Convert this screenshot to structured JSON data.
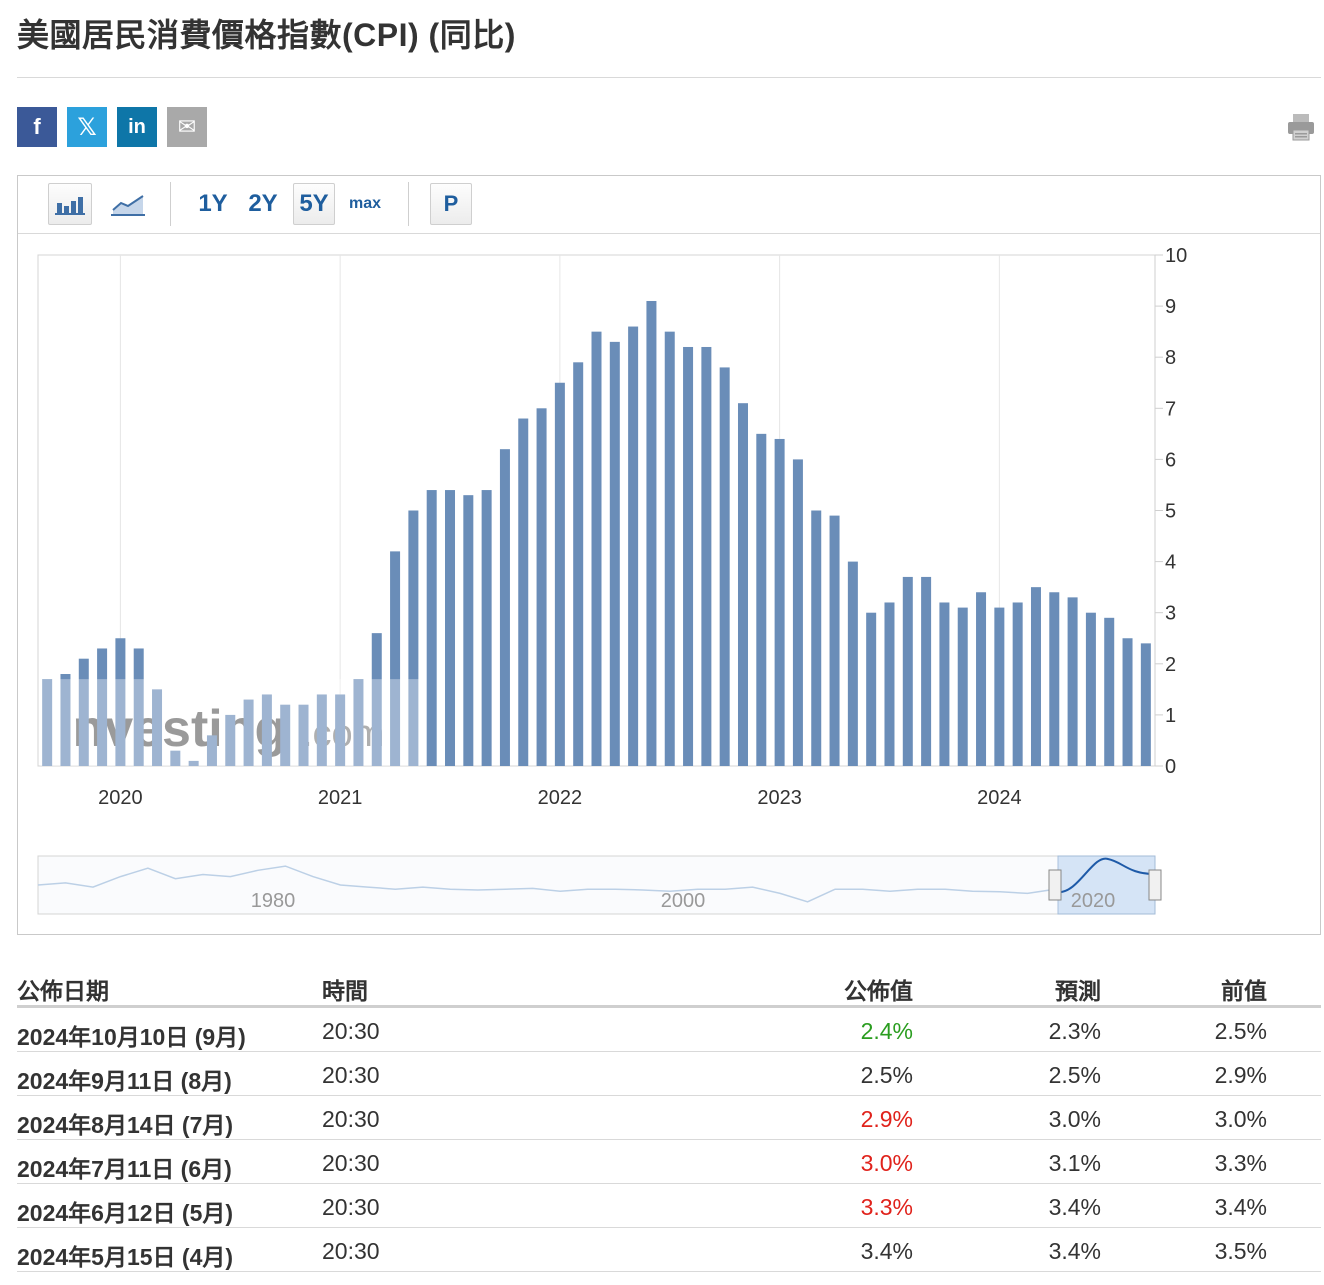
{
  "page": {
    "title": "美國居民消費價格指數(CPI) (同比)"
  },
  "share": {
    "facebook": "f",
    "twitter": "𝕏",
    "linkedin": "in",
    "email": "✉"
  },
  "toolbar": {
    "ranges": [
      "1Y",
      "2Y",
      "5Y",
      "max"
    ],
    "selected_range": "5Y",
    "p_label": "P"
  },
  "chart_data": {
    "type": "bar",
    "title": "",
    "xlabel": "",
    "ylabel": "",
    "ylim": [
      0,
      10
    ],
    "yticks": [
      0,
      1,
      2,
      3,
      4,
      5,
      6,
      7,
      8,
      9,
      10
    ],
    "year_ticks": [
      "2020",
      "2021",
      "2022",
      "2023",
      "2024"
    ],
    "categories": [
      "2019-09",
      "2019-10",
      "2019-11",
      "2019-12",
      "2020-01",
      "2020-02",
      "2020-03",
      "2020-04",
      "2020-05",
      "2020-06",
      "2020-07",
      "2020-08",
      "2020-09",
      "2020-10",
      "2020-11",
      "2020-12",
      "2021-01",
      "2021-02",
      "2021-03",
      "2021-04",
      "2021-05",
      "2021-06",
      "2021-07",
      "2021-08",
      "2021-09",
      "2021-10",
      "2021-11",
      "2021-12",
      "2022-01",
      "2022-02",
      "2022-03",
      "2022-04",
      "2022-05",
      "2022-06",
      "2022-07",
      "2022-08",
      "2022-09",
      "2022-10",
      "2022-11",
      "2022-12",
      "2023-01",
      "2023-02",
      "2023-03",
      "2023-04",
      "2023-05",
      "2023-06",
      "2023-07",
      "2023-08",
      "2023-09",
      "2023-10",
      "2023-11",
      "2023-12",
      "2024-01",
      "2024-02",
      "2024-03",
      "2024-04",
      "2024-05",
      "2024-06",
      "2024-07",
      "2024-08",
      "2024-09"
    ],
    "values": [
      1.7,
      1.8,
      2.1,
      2.3,
      2.5,
      2.3,
      1.5,
      0.3,
      0.1,
      0.6,
      1.0,
      1.3,
      1.4,
      1.2,
      1.2,
      1.4,
      1.4,
      1.7,
      2.6,
      4.2,
      5.0,
      5.4,
      5.4,
      5.3,
      5.4,
      6.2,
      6.8,
      7.0,
      7.5,
      7.9,
      8.5,
      8.3,
      8.6,
      9.1,
      8.5,
      8.2,
      8.2,
      7.8,
      7.1,
      6.5,
      6.4,
      6.0,
      5.0,
      4.9,
      4.0,
      3.0,
      3.2,
      3.7,
      3.7,
      3.2,
      3.1,
      3.4,
      3.1,
      3.2,
      3.5,
      3.4,
      3.3,
      3.0,
      2.9,
      2.5,
      2.4
    ],
    "color": "#6a8db8",
    "watermark": {
      "brand": "Investing",
      "suffix": ".com"
    },
    "navigator": {
      "labels": [
        "1980",
        "2000",
        "2020"
      ]
    }
  },
  "table": {
    "headers": {
      "date": "公佈日期",
      "time": "時間",
      "actual": "公佈值",
      "forecast": "預測",
      "previous": "前值"
    },
    "rows": [
      {
        "date": "2024年10月10日 (9月)",
        "time": "20:30",
        "actual": "2.4%",
        "forecast": "2.3%",
        "previous": "2.5%",
        "status": "green"
      },
      {
        "date": "2024年9月11日 (8月)",
        "time": "20:30",
        "actual": "2.5%",
        "forecast": "2.5%",
        "previous": "2.9%",
        "status": ""
      },
      {
        "date": "2024年8月14日 (7月)",
        "time": "20:30",
        "actual": "2.9%",
        "forecast": "3.0%",
        "previous": "3.0%",
        "status": "red"
      },
      {
        "date": "2024年7月11日 (6月)",
        "time": "20:30",
        "actual": "3.0%",
        "forecast": "3.1%",
        "previous": "3.3%",
        "status": "red"
      },
      {
        "date": "2024年6月12日 (5月)",
        "time": "20:30",
        "actual": "3.3%",
        "forecast": "3.4%",
        "previous": "3.4%",
        "status": "red"
      },
      {
        "date": "2024年5月15日 (4月)",
        "time": "20:30",
        "actual": "3.4%",
        "forecast": "3.4%",
        "previous": "3.5%",
        "status": ""
      }
    ]
  }
}
